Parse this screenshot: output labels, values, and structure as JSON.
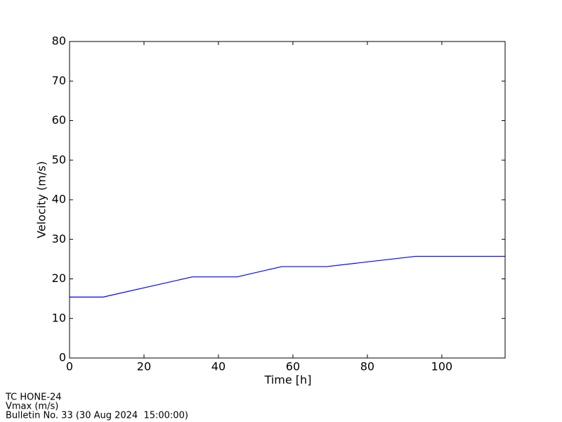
{
  "chart_data": {
    "type": "line",
    "x_label": "Time [h]",
    "y_label": "Velocity (m/s)",
    "x": [
      0,
      9,
      33,
      45,
      57,
      69,
      93,
      117
    ],
    "series": [
      {
        "color": "#0000ff",
        "values": [
          15.4,
          15.4,
          20.5,
          20.5,
          23.1,
          23.1,
          25.7,
          25.7
        ]
      }
    ],
    "xlim": [
      0,
      117
    ],
    "xticks": [
      0,
      20,
      40,
      60,
      80,
      100
    ],
    "ylim": [
      0,
      80
    ],
    "yticks": [
      0,
      10,
      20,
      30,
      40,
      50,
      60,
      70,
      80
    ],
    "footer": [
      "TC HONE-24",
      "Vmax (m/s)",
      "Bulletin No. 33 (30 Aug 2024  15:00:00)"
    ]
  }
}
